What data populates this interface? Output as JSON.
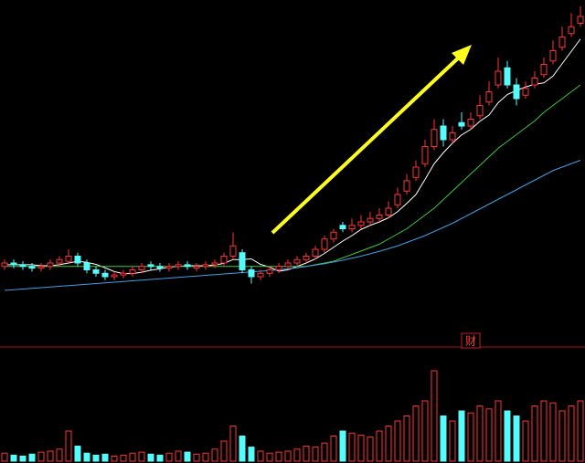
{
  "chart_data": [
    {
      "type": "candlestick",
      "annotation": "财",
      "ylim": [
        0,
        100
      ],
      "up_color": "#ff3232",
      "down_color": "#54fcfc",
      "open": [
        23,
        24,
        23.5,
        23,
        22.5,
        23,
        24,
        24.5,
        26,
        24,
        22,
        21,
        20,
        20.5,
        21,
        22,
        23.5,
        23,
        22.5,
        23,
        23.5,
        22.5,
        23,
        23.5,
        24,
        26,
        27,
        22,
        20,
        21,
        22,
        23,
        24,
        25,
        26,
        28,
        31,
        35,
        34,
        35,
        36,
        37,
        38,
        41,
        45,
        49,
        53,
        58,
        64,
        60,
        65,
        64,
        67,
        71,
        76,
        81,
        76,
        73,
        76,
        79,
        83,
        87,
        91,
        94
      ],
      "high": [
        25,
        25,
        24.5,
        24,
        24,
        25,
        26,
        28,
        27,
        25,
        23,
        22,
        21.5,
        22,
        23,
        24,
        24.5,
        24,
        24,
        24.5,
        24.5,
        24,
        24.5,
        25,
        27,
        33,
        28,
        23,
        22,
        23,
        24,
        25,
        26,
        27,
        29,
        32,
        34,
        36,
        37,
        38,
        39,
        40,
        42,
        46,
        50,
        54,
        60,
        66,
        66,
        64,
        68,
        68,
        73,
        77,
        84,
        83,
        78,
        77,
        80,
        84,
        89,
        93,
        97,
        99
      ],
      "low": [
        22,
        22.5,
        22,
        21.5,
        21.5,
        22,
        23,
        24,
        23,
        21,
        20,
        19,
        19,
        19.5,
        20,
        21,
        22,
        21.5,
        21.5,
        22,
        22,
        21.5,
        22,
        22.5,
        23,
        25,
        21,
        18,
        19,
        20,
        21,
        22,
        23,
        24,
        25,
        27,
        30,
        33,
        33,
        34,
        35,
        36,
        37,
        40,
        44,
        48,
        52,
        57,
        58,
        59,
        63,
        63,
        66,
        70,
        75,
        75,
        70,
        72,
        75,
        78,
        82,
        86,
        90,
        93
      ],
      "close": [
        24,
        23.5,
        23,
        22.5,
        23,
        24,
        25,
        26,
        24,
        22,
        21,
        20,
        20.5,
        21,
        22,
        23,
        23,
        22.5,
        23,
        23.5,
        23,
        23,
        23.5,
        24,
        26,
        29,
        22,
        20,
        21,
        22,
        23,
        24,
        25,
        26,
        28,
        31,
        33,
        34,
        35,
        36,
        37,
        38,
        40,
        44,
        48,
        52,
        58,
        63,
        60,
        62,
        64,
        66,
        70,
        74,
        80,
        76,
        72,
        75,
        78,
        82,
        86,
        90,
        93,
        96
      ],
      "series": [
        {
          "color": "#ffffff",
          "values": [
            23.5,
            23.5,
            23.5,
            23.5,
            23.2,
            23.2,
            23.5,
            24,
            24.5,
            24.2,
            23.6,
            22.6,
            21.5,
            20.9,
            20.9,
            21.3,
            21.9,
            22.3,
            22.8,
            23,
            23.2,
            23.2,
            23.2,
            23.4,
            23.9,
            25,
            25,
            25.2,
            23.6,
            22.8,
            21.6,
            22,
            23,
            24,
            25.2,
            26.8,
            28.6,
            30.4,
            32,
            33.8,
            35,
            36,
            37.2,
            39,
            41.4,
            44,
            48.4,
            53,
            56.2,
            59,
            61.4,
            63,
            65.4,
            67.2,
            70.8,
            73.2,
            74.4,
            75.4,
            76.2,
            76.6,
            78.6,
            82.2,
            85.8,
            89.4
          ]
        },
        {
          "color": "#3cc83c",
          "values": [
            23,
            23,
            23,
            23,
            23,
            23,
            23,
            23,
            23,
            23,
            23,
            23,
            23,
            23,
            23,
            23,
            23,
            23,
            23,
            23,
            23,
            23,
            23,
            23,
            23,
            23,
            23,
            23,
            23,
            23,
            23,
            23,
            23,
            23,
            23.5,
            24,
            24.5,
            25.5,
            26.5,
            27.5,
            28.5,
            29.5,
            31,
            32.5,
            34,
            36,
            38,
            40,
            42.5,
            45,
            47.5,
            50,
            52.5,
            55,
            57.5,
            59.5,
            61.5,
            63.5,
            65.5,
            68,
            70,
            72,
            74,
            76
          ]
        },
        {
          "color": "#3ca0e6",
          "values": [
            16,
            16.2,
            16.4,
            16.6,
            16.8,
            17,
            17.2,
            17.4,
            17.6,
            17.8,
            18,
            18.2,
            18.4,
            18.6,
            18.8,
            19,
            19.2,
            19.4,
            19.6,
            19.8,
            20,
            20.2,
            20.4,
            20.6,
            20.8,
            21,
            21.2,
            21.4,
            21.6,
            21.8,
            22,
            22.3,
            22.6,
            23,
            23.4,
            23.8,
            24.3,
            24.8,
            25.4,
            26,
            26.7,
            27.4,
            28.2,
            29,
            30,
            31,
            32,
            33.2,
            34.4,
            35.6,
            37,
            38.4,
            39.8,
            41.2,
            42.6,
            44,
            45.4,
            46.8,
            48.2,
            49.6,
            51,
            52,
            53,
            54
          ]
        }
      ]
    },
    {
      "type": "bar",
      "ylim": [
        0,
        100
      ],
      "values": [
        8,
        6,
        5,
        7,
        9,
        10,
        12,
        30,
        15,
        8,
        6,
        7,
        5,
        6,
        8,
        9,
        7,
        6,
        8,
        10,
        9,
        7,
        8,
        12,
        20,
        35,
        25,
        14,
        10,
        8,
        9,
        10,
        12,
        15,
        14,
        18,
        25,
        30,
        28,
        26,
        24,
        30,
        35,
        40,
        45,
        55,
        60,
        90,
        45,
        40,
        50,
        48,
        55,
        52,
        60,
        50,
        45,
        40,
        55,
        60,
        58,
        50,
        55,
        60
      ]
    }
  ]
}
